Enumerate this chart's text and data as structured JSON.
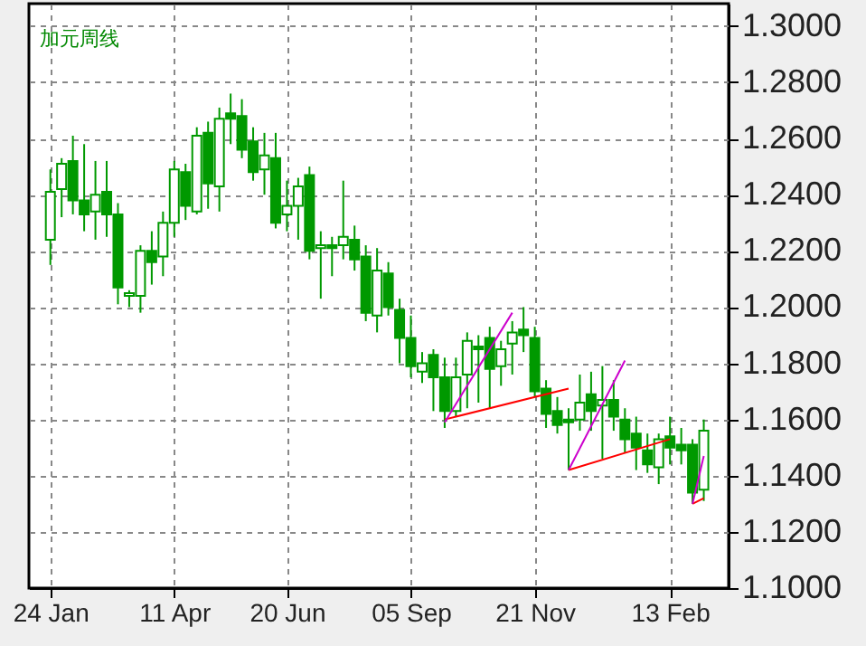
{
  "chart_data": {
    "type": "candlestick",
    "title": "加元周线",
    "color": "#009900",
    "categories": [
      "24 Jan",
      null,
      null,
      null,
      null,
      null,
      null,
      null,
      null,
      null,
      null,
      "11 Apr",
      null,
      null,
      null,
      null,
      null,
      null,
      null,
      null,
      null,
      "20 Jun",
      null,
      null,
      null,
      null,
      null,
      null,
      null,
      null,
      null,
      null,
      "05 Sep",
      null,
      null,
      null,
      null,
      null,
      null,
      null,
      null,
      null,
      null,
      "21 Nov",
      null,
      null,
      null,
      null,
      null,
      null,
      null,
      null,
      null,
      null,
      null,
      "13 Feb",
      null,
      null,
      null
    ],
    "ohlc": [
      [
        1.224,
        1.249,
        1.215,
        1.241
      ],
      [
        1.242,
        1.253,
        1.232,
        1.251
      ],
      [
        1.252,
        1.261,
        1.233,
        1.238
      ],
      [
        1.238,
        1.258,
        1.227,
        1.233
      ],
      [
        1.234,
        1.252,
        1.224,
        1.24
      ],
      [
        1.241,
        1.252,
        1.225,
        1.233
      ],
      [
        1.233,
        1.237,
        1.201,
        1.207
      ],
      [
        1.204,
        1.206,
        1.2,
        1.205
      ],
      [
        1.204,
        1.222,
        1.198,
        1.22
      ],
      [
        1.22,
        1.227,
        1.208,
        1.216
      ],
      [
        1.218,
        1.234,
        1.211,
        1.23
      ],
      [
        1.23,
        1.252,
        1.225,
        1.249
      ],
      [
        1.248,
        1.251,
        1.231,
        1.236
      ],
      [
        1.234,
        1.264,
        1.233,
        1.261
      ],
      [
        1.262,
        1.266,
        1.235,
        1.244
      ],
      [
        1.243,
        1.271,
        1.234,
        1.267
      ],
      [
        1.269,
        1.276,
        1.258,
        1.267
      ],
      [
        1.268,
        1.274,
        1.253,
        1.256
      ],
      [
        1.259,
        1.264,
        1.245,
        1.248
      ],
      [
        1.249,
        1.262,
        1.24,
        1.254
      ],
      [
        1.253,
        1.262,
        1.228,
        1.23
      ],
      [
        1.233,
        1.245,
        1.227,
        1.236
      ],
      [
        1.236,
        1.246,
        1.224,
        1.243
      ],
      [
        1.247,
        1.25,
        1.217,
        1.22
      ],
      [
        1.221,
        1.227,
        1.203,
        1.222
      ],
      [
        1.222,
        1.225,
        1.211,
        1.221
      ],
      [
        1.222,
        1.245,
        1.217,
        1.225
      ],
      [
        1.224,
        1.229,
        1.213,
        1.217
      ],
      [
        1.218,
        1.222,
        1.195,
        1.198
      ],
      [
        1.197,
        1.221,
        1.191,
        1.213
      ],
      [
        1.212,
        1.216,
        1.197,
        1.2
      ],
      [
        1.199,
        1.203,
        1.18,
        1.189
      ],
      [
        1.189,
        1.197,
        1.175,
        1.179
      ],
      [
        1.177,
        1.184,
        1.173,
        1.18
      ],
      [
        1.183,
        1.185,
        1.163,
        1.175
      ],
      [
        1.175,
        1.182,
        1.157,
        1.163
      ],
      [
        1.163,
        1.182,
        1.161,
        1.175
      ],
      [
        1.176,
        1.191,
        1.164,
        1.188
      ],
      [
        1.186,
        1.19,
        1.166,
        1.185
      ],
      [
        1.189,
        1.193,
        1.164,
        1.178
      ],
      [
        1.179,
        1.188,
        1.172,
        1.185
      ],
      [
        1.187,
        1.195,
        1.176,
        1.191
      ],
      [
        1.192,
        1.2,
        1.184,
        1.19
      ],
      [
        1.189,
        1.193,
        1.168,
        1.17
      ],
      [
        1.171,
        1.174,
        1.157,
        1.162
      ],
      [
        1.163,
        1.168,
        1.155,
        1.158
      ],
      [
        1.16,
        1.164,
        1.142,
        1.159
      ],
      [
        1.16,
        1.176,
        1.156,
        1.166
      ],
      [
        1.169,
        1.177,
        1.156,
        1.163
      ],
      [
        1.165,
        1.179,
        1.146,
        1.167
      ],
      [
        1.167,
        1.174,
        1.156,
        1.161
      ],
      [
        1.16,
        1.164,
        1.148,
        1.153
      ],
      [
        1.155,
        1.161,
        1.142,
        1.15
      ],
      [
        1.149,
        1.155,
        1.141,
        1.144
      ],
      [
        1.143,
        1.155,
        1.137,
        1.153
      ],
      [
        1.154,
        1.161,
        1.144,
        1.15
      ],
      [
        1.151,
        1.157,
        1.144,
        1.149
      ],
      [
        1.151,
        1.153,
        1.13,
        1.134
      ],
      [
        1.135,
        1.16,
        1.131,
        1.156
      ]
    ],
    "series": [
      {
        "type": "line",
        "color": "#ff0000",
        "values": [
          null,
          null,
          null,
          null,
          null,
          null,
          null,
          null,
          null,
          null,
          null,
          null,
          null,
          null,
          null,
          null,
          null,
          null,
          null,
          null,
          null,
          null,
          null,
          null,
          null,
          null,
          null,
          null,
          null,
          null,
          null,
          null,
          null,
          null,
          null,
          1.16,
          null,
          null,
          null,
          null,
          null,
          null,
          null,
          null,
          null,
          null,
          1.171,
          null,
          null,
          null,
          null,
          null,
          null,
          null,
          null,
          null,
          null,
          null,
          null
        ]
      },
      {
        "type": "line",
        "color": "#ff0000",
        "values": [
          null,
          null,
          null,
          null,
          null,
          null,
          null,
          null,
          null,
          null,
          null,
          null,
          null,
          null,
          null,
          null,
          null,
          null,
          null,
          null,
          null,
          null,
          null,
          null,
          null,
          null,
          null,
          null,
          null,
          null,
          null,
          null,
          null,
          null,
          null,
          null,
          null,
          null,
          null,
          null,
          null,
          null,
          null,
          null,
          null,
          null,
          1.142,
          null,
          null,
          null,
          null,
          null,
          null,
          null,
          null,
          1.153,
          null,
          null,
          null
        ]
      },
      {
        "type": "line",
        "color": "#ff0000",
        "values": [
          null,
          null,
          null,
          null,
          null,
          null,
          null,
          null,
          null,
          null,
          null,
          null,
          null,
          null,
          null,
          null,
          null,
          null,
          null,
          null,
          null,
          null,
          null,
          null,
          null,
          null,
          null,
          null,
          null,
          null,
          null,
          null,
          null,
          null,
          null,
          null,
          null,
          null,
          null,
          null,
          null,
          null,
          null,
          null,
          null,
          null,
          null,
          null,
          null,
          null,
          null,
          null,
          null,
          null,
          null,
          null,
          null,
          1.13,
          1.132
        ]
      },
      {
        "type": "line",
        "color": "#cc00cc",
        "values": [
          null,
          null,
          null,
          null,
          null,
          null,
          null,
          null,
          null,
          null,
          null,
          null,
          null,
          null,
          null,
          null,
          null,
          null,
          null,
          null,
          null,
          null,
          null,
          null,
          null,
          null,
          null,
          null,
          null,
          null,
          null,
          null,
          null,
          null,
          null,
          1.159,
          null,
          null,
          null,
          null,
          null,
          1.198,
          null,
          null,
          null,
          null,
          null,
          null,
          null,
          null,
          null,
          null,
          null,
          null,
          null,
          null,
          null,
          null,
          null
        ]
      },
      {
        "type": "line",
        "color": "#cc00cc",
        "values": [
          null,
          null,
          null,
          null,
          null,
          null,
          null,
          null,
          null,
          null,
          null,
          null,
          null,
          null,
          null,
          null,
          null,
          null,
          null,
          null,
          null,
          null,
          null,
          null,
          null,
          null,
          null,
          null,
          null,
          null,
          null,
          null,
          null,
          null,
          null,
          null,
          null,
          null,
          null,
          null,
          null,
          null,
          null,
          null,
          null,
          null,
          1.142,
          null,
          null,
          null,
          null,
          1.181,
          null,
          null,
          null,
          null,
          null,
          null,
          null
        ]
      },
      {
        "type": "line",
        "color": "#cc00cc",
        "values": [
          null,
          null,
          null,
          null,
          null,
          null,
          null,
          null,
          null,
          null,
          null,
          null,
          null,
          null,
          null,
          null,
          null,
          null,
          null,
          null,
          null,
          null,
          null,
          null,
          null,
          null,
          null,
          null,
          null,
          null,
          null,
          null,
          null,
          null,
          null,
          null,
          null,
          null,
          null,
          null,
          null,
          null,
          null,
          null,
          null,
          null,
          null,
          null,
          null,
          null,
          null,
          null,
          null,
          null,
          null,
          null,
          null,
          1.13,
          1.147
        ]
      }
    ],
    "ylim": [
      1.1,
      1.308
    ],
    "yticks": [
      {
        "value": 1.1,
        "label": "1.1000"
      },
      {
        "value": 1.12,
        "label": "1.1200"
      },
      {
        "value": 1.14,
        "label": "1.1400"
      },
      {
        "value": 1.16,
        "label": "1.1600"
      },
      {
        "value": 1.18,
        "label": "1.1800"
      },
      {
        "value": 1.2,
        "label": "1.2000"
      },
      {
        "value": 1.22,
        "label": "1.2200"
      },
      {
        "value": 1.24,
        "label": "1.2400"
      },
      {
        "value": 1.26,
        "label": "1.2600"
      },
      {
        "value": 1.28,
        "label": "1.2800"
      },
      {
        "value": 1.3,
        "label": "1.3000"
      }
    ],
    "grid": true
  }
}
